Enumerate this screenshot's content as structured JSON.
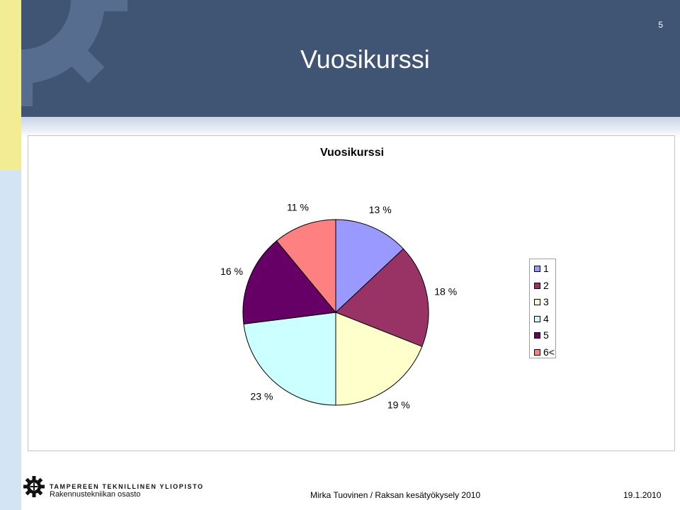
{
  "slide": {
    "number": "5",
    "title": "Vuosikurssi"
  },
  "chart_data": {
    "type": "pie",
    "title": "Vuosikurssi",
    "categories": [
      "1",
      "2",
      "3",
      "4",
      "5",
      "6<"
    ],
    "values": [
      13,
      18,
      19,
      23,
      16,
      11
    ],
    "labels": [
      "13 %",
      "18 %",
      "19 %",
      "23 %",
      "16 %",
      "11 %"
    ],
    "colors": [
      "#9999ff",
      "#993366",
      "#ffffcc",
      "#ccffff",
      "#660066",
      "#ff8080"
    ],
    "legend_position": "right"
  },
  "footer": {
    "university": "TAMPEREEN TEKNILLINEN YLIOPISTO",
    "department": "Rakennustekniikan osasto",
    "author": "Mirka Tuovinen / Raksan kesätyökysely 2010",
    "date": "19.1.2010"
  }
}
